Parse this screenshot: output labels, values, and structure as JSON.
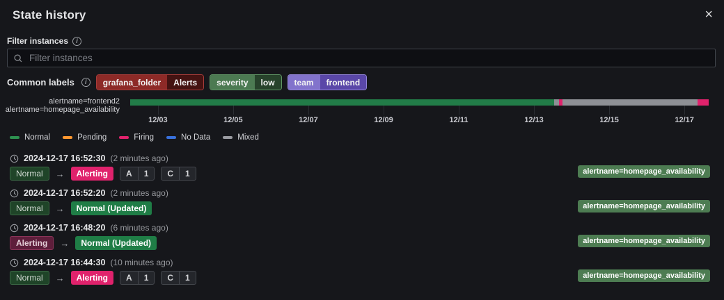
{
  "header": {
    "title": "State history",
    "close_icon": "×"
  },
  "filter": {
    "label": "Filter instances",
    "placeholder": "Filter instances"
  },
  "common_labels": {
    "label": "Common labels",
    "badges": [
      {
        "key": "grafana_folder",
        "value": "Alerts",
        "key_bg": "#8d2a27",
        "value_bg": "#441312",
        "border": "#a63c39"
      },
      {
        "key": "severity",
        "value": "low",
        "key_bg": "#4c7a52",
        "value_bg": "#27422b",
        "border": "#5f9464"
      },
      {
        "key": "team",
        "value": "frontend",
        "key_bg": "#8273cc",
        "value_bg": "#5a47a8",
        "border": "#9284d6"
      }
    ]
  },
  "timeline": {
    "row_labels": [
      "alertname=frontend2",
      "alertname=homepage_availability"
    ],
    "segments": [
      {
        "state": "normal",
        "color": "#227c48",
        "width_pct": 73.3
      },
      {
        "state": "mixed",
        "color": "#8e9095",
        "width_pct": 0.84
      },
      {
        "state": "firing",
        "color": "#e0226c",
        "width_pct": 0.6
      },
      {
        "state": "mixed",
        "color": "#8e9095",
        "width_pct": 23.33
      },
      {
        "state": "firing",
        "color": "#e0226c",
        "width_pct": 1.93
      }
    ],
    "ticks": [
      {
        "label": "12/03",
        "pos_pct": 4.8
      },
      {
        "label": "12/05",
        "pos_pct": 17.8
      },
      {
        "label": "12/07",
        "pos_pct": 30.8
      },
      {
        "label": "12/09",
        "pos_pct": 43.8
      },
      {
        "label": "12/11",
        "pos_pct": 56.8
      },
      {
        "label": "12/13",
        "pos_pct": 69.8
      },
      {
        "label": "12/15",
        "pos_pct": 82.8
      },
      {
        "label": "12/17",
        "pos_pct": 95.8
      }
    ]
  },
  "legend": [
    {
      "label": "Normal",
      "color": "#2d9150"
    },
    {
      "label": "Pending",
      "color": "#ff9830"
    },
    {
      "label": "Firing",
      "color": "#e0226c"
    },
    {
      "label": "No Data",
      "color": "#3871dc"
    },
    {
      "label": "Mixed",
      "color": "#9a9ba1"
    }
  ],
  "icons": {
    "arrow_right": "→",
    "info": "i"
  },
  "entries": [
    {
      "timestamp": "2024-12-17 16:52:30",
      "relative": "(2 minutes ago)",
      "from": "Normal",
      "to": "Alerting",
      "counters": [
        {
          "key": "A",
          "value": "1"
        },
        {
          "key": "C",
          "value": "1"
        }
      ],
      "instance": "alertname=homepage_availability"
    },
    {
      "timestamp": "2024-12-17 16:52:20",
      "relative": "(2 minutes ago)",
      "from": "Normal",
      "to": "Normal (Updated)",
      "counters": [],
      "instance": "alertname=homepage_availability"
    },
    {
      "timestamp": "2024-12-17 16:48:20",
      "relative": "(6 minutes ago)",
      "from": "Alerting",
      "to": "Normal (Updated)",
      "counters": [],
      "instance": "alertname=homepage_availability"
    },
    {
      "timestamp": "2024-12-17 16:44:30",
      "relative": "(10 minutes ago)",
      "from": "Normal",
      "to": "Alerting",
      "counters": [
        {
          "key": "A",
          "value": "1"
        },
        {
          "key": "C",
          "value": "1"
        }
      ],
      "instance": "alertname=homepage_availability"
    }
  ]
}
